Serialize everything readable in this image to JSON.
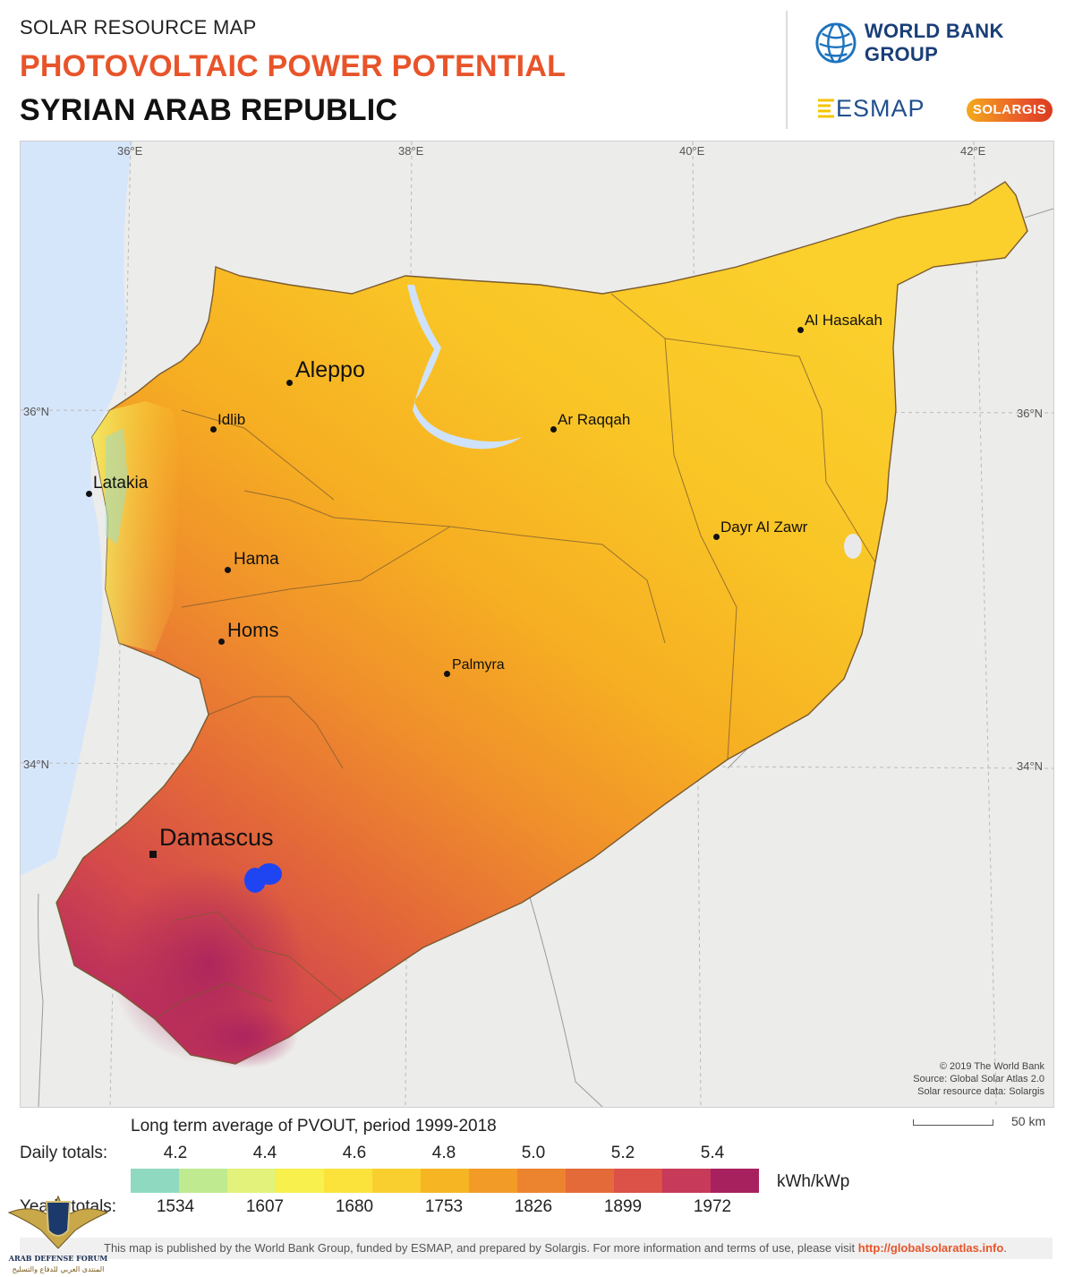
{
  "header": {
    "eyebrow": "SOLAR RESOURCE MAP",
    "title": "PHOTOVOLTAIC POWER POTENTIAL",
    "subtitle": "SYRIAN ARAB REPUBLIC",
    "wbg_label": "WORLD BANK GROUP",
    "esmap_label": "ESMAP",
    "solargis_label": "SOLARGIS"
  },
  "map": {
    "longitudes": [
      "36°E",
      "38°E",
      "40°E",
      "42°E"
    ],
    "latitudes": [
      "36°N",
      "34°N"
    ],
    "cities": [
      {
        "name": "Aleppo",
        "size": "large"
      },
      {
        "name": "Al Hasakah",
        "size": "small"
      },
      {
        "name": "Idlib",
        "size": "small"
      },
      {
        "name": "Ar Raqqah",
        "size": "small"
      },
      {
        "name": "Latakia",
        "size": "medium"
      },
      {
        "name": "Dayr Al Zawr",
        "size": "small"
      },
      {
        "name": "Hama",
        "size": "medium"
      },
      {
        "name": "Homs",
        "size": "medium"
      },
      {
        "name": "Palmyra",
        "size": "small"
      },
      {
        "name": "Damascus",
        "size": "capital"
      }
    ],
    "credits": {
      "line1": "© 2019 The World Bank",
      "line2": "Source: Global Solar Atlas 2.0",
      "line3": "Solar resource data: Solargis"
    },
    "scale_label": "50 km"
  },
  "legend": {
    "title": "Long term average of PVOUT, period 1999-2018",
    "daily_label": "Daily totals:",
    "yearly_label": "Yearly totals:",
    "daily_ticks": [
      "4.2",
      "4.4",
      "4.6",
      "4.8",
      "5.0",
      "5.2",
      "5.4"
    ],
    "yearly_ticks": [
      "1534",
      "1607",
      "1680",
      "1753",
      "1826",
      "1899",
      "1972"
    ],
    "unit": "kWh/kWp",
    "colors": [
      "#8fd9c1",
      "#bfea90",
      "#e2f27a",
      "#f7f04d",
      "#fbe33c",
      "#f9cf2f",
      "#f6b624",
      "#f29c27",
      "#ec832f",
      "#e56a39",
      "#dc5148",
      "#c83a59",
      "#a8215f"
    ]
  },
  "footer": {
    "text": "This map is published by the World Bank Group, funded by ESMAP, and prepared by Solargis. For more information and terms of use, please visit ",
    "link": "http://globalsolaratlas.info",
    "end": "."
  },
  "watermark": {
    "line1": "ARAB DEFENSE FORUM",
    "line2": "المنتدى العربي للدفاع والتسليح"
  }
}
